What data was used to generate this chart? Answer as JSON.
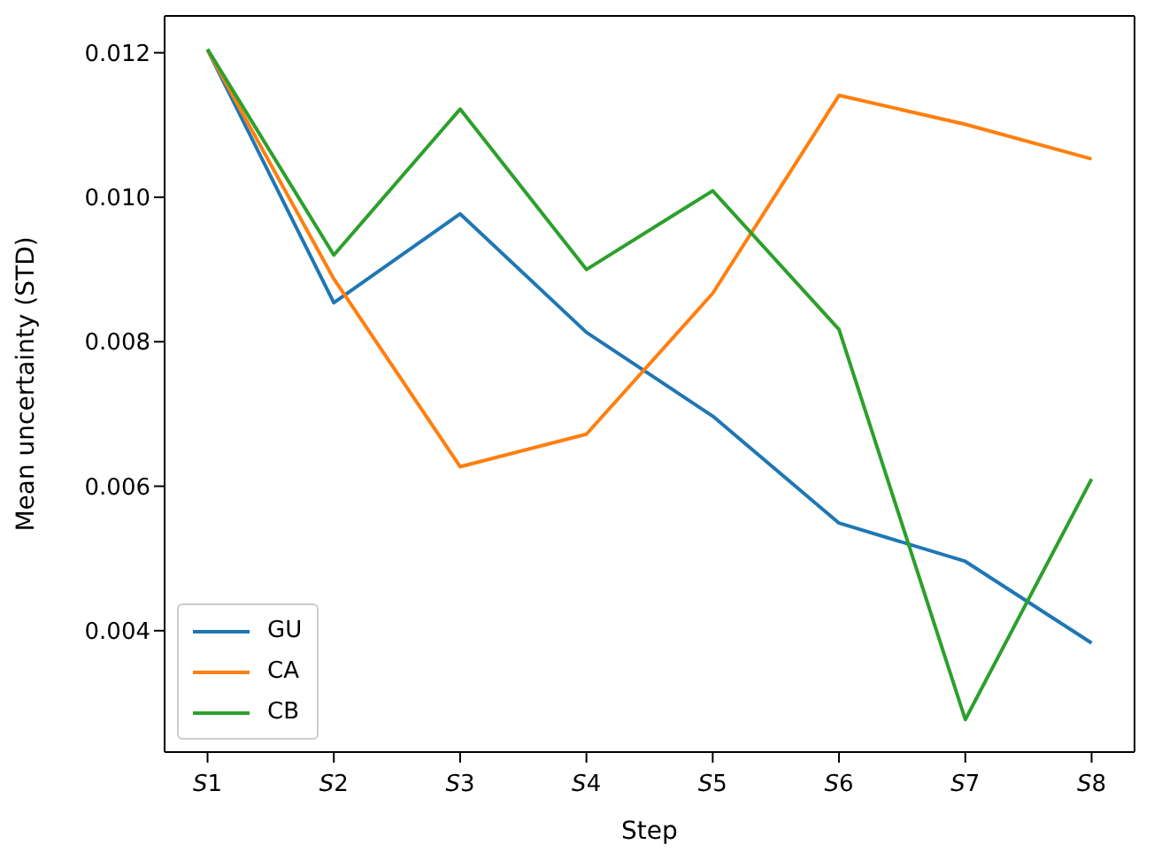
{
  "chart_data": {
    "type": "line",
    "xlabel": "Step",
    "ylabel": "Mean uncertainty (STD)",
    "categories": [
      "S1",
      "S2",
      "S3",
      "S4",
      "S5",
      "S6",
      "S7",
      "S8"
    ],
    "series": [
      {
        "name": "GU",
        "color": "#1f77b4",
        "values": [
          0.01204,
          0.00854,
          0.00977,
          0.00813,
          0.00697,
          0.00549,
          0.00496,
          0.00383
        ]
      },
      {
        "name": "CA",
        "color": "#ff7f0e",
        "values": [
          0.01204,
          0.00887,
          0.00627,
          0.00672,
          0.00867,
          0.01141,
          0.01101,
          0.01053
        ]
      },
      {
        "name": "CB",
        "color": "#2ca02c",
        "values": [
          0.01205,
          0.0092,
          0.01122,
          0.009,
          0.01009,
          0.00817,
          0.00277,
          0.0061
        ]
      }
    ],
    "ylim": [
      0.00232,
      0.01251
    ],
    "yticks": [
      0.004,
      0.006,
      0.008,
      {
        "value": 0.01,
        "label": "0.010"
      },
      0.012
    ],
    "grid": false,
    "legend": "lower left",
    "marker": "none",
    "line_style": "solid"
  }
}
